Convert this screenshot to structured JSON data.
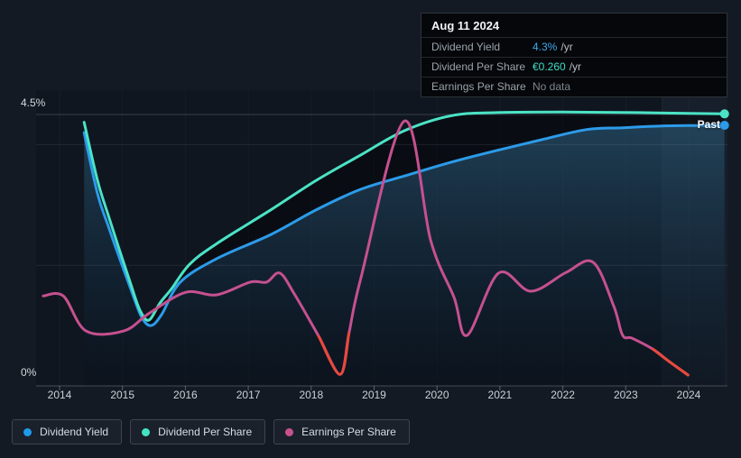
{
  "past_label": "Past",
  "axis": {
    "y_top_label": "4.5%",
    "y_bottom_label": "0%",
    "x_labels": [
      "2014",
      "2015",
      "2016",
      "2017",
      "2018",
      "2019",
      "2020",
      "2021",
      "2022",
      "2023",
      "2024"
    ]
  },
  "tooltip": {
    "date": "Aug 11 2024",
    "rows": [
      {
        "label": "Dividend Yield",
        "value": "4.3%",
        "suffix": "/yr",
        "value_color": "#3FA9EC"
      },
      {
        "label": "Dividend Per Share",
        "value": "€0.260",
        "suffix": "/yr",
        "value_color": "#41DCC8"
      },
      {
        "label": "Earnings Per Share",
        "value": "No data",
        "suffix": "",
        "value_color": "#7E8690"
      }
    ]
  },
  "legend": [
    {
      "label": "Dividend Yield",
      "color": "#1E9BE8"
    },
    {
      "label": "Dividend Per Share",
      "color": "#44E2C4"
    },
    {
      "label": "Earnings Per Share",
      "color": "#C8518E"
    }
  ],
  "chart_data": {
    "type": "line",
    "title": "Dividend history (Past)",
    "x_axis": {
      "unit": "year",
      "ticks": [
        2014,
        2015,
        2016,
        2017,
        2018,
        2019,
        2020,
        2021,
        2022,
        2023,
        2024
      ]
    },
    "y_axis": {
      "unit": "%",
      "min": 0,
      "max": 4.5,
      "gridlines": [
        0,
        2,
        4,
        4.5
      ]
    },
    "past_band_start_year": 2023.58,
    "end_date": "Aug 11 2024",
    "series": [
      {
        "name": "Dividend Yield",
        "color": "#2C9BE9",
        "area": "blue-gradient",
        "end_marker": true,
        "current": "4.3% /yr",
        "points": [
          [
            2014.39,
            4.2
          ],
          [
            2014.6,
            3.2
          ],
          [
            2014.77,
            2.66
          ],
          [
            2015.13,
            1.61
          ],
          [
            2015.3,
            1.15
          ],
          [
            2015.45,
            1.0
          ],
          [
            2015.62,
            1.18
          ],
          [
            2015.92,
            1.72
          ],
          [
            2016.5,
            2.11
          ],
          [
            2017.36,
            2.51
          ],
          [
            2018.1,
            2.93
          ],
          [
            2018.79,
            3.26
          ],
          [
            2019.48,
            3.48
          ],
          [
            2020.23,
            3.71
          ],
          [
            2020.94,
            3.9
          ],
          [
            2021.66,
            4.08
          ],
          [
            2022.38,
            4.25
          ],
          [
            2022.95,
            4.28
          ],
          [
            2023.58,
            4.31
          ],
          [
            2024.57,
            4.32
          ]
        ]
      },
      {
        "name": "Dividend Per Share",
        "color": "#4BE3C6",
        "area": "dark",
        "end_marker": true,
        "current": "€0.260 /yr",
        "note": "plotted scaled to yield axis",
        "points": [
          [
            2014.39,
            4.37
          ],
          [
            2014.6,
            3.42
          ],
          [
            2014.77,
            2.84
          ],
          [
            2015.13,
            1.69
          ],
          [
            2015.28,
            1.25
          ],
          [
            2015.42,
            1.09
          ],
          [
            2015.6,
            1.38
          ],
          [
            2015.78,
            1.61
          ],
          [
            2016.07,
            2.02
          ],
          [
            2016.5,
            2.36
          ],
          [
            2017.36,
            2.92
          ],
          [
            2018.07,
            3.4
          ],
          [
            2018.79,
            3.83
          ],
          [
            2019.48,
            4.23
          ],
          [
            2020.23,
            4.48
          ],
          [
            2020.94,
            4.53
          ],
          [
            2022.0,
            4.54
          ],
          [
            2023.2,
            4.53
          ],
          [
            2024.57,
            4.51
          ]
        ]
      },
      {
        "name": "Earnings Per Share",
        "color": "#C65090",
        "end_marker": false,
        "current": "No data",
        "red_color": "#E8493A",
        "red_ranges": [
          [
            2018.05,
            2018.62
          ],
          [
            2023.3,
            2024.05
          ]
        ],
        "points": [
          [
            2013.74,
            1.49
          ],
          [
            2014.06,
            1.49
          ],
          [
            2014.42,
            0.91
          ],
          [
            2015.02,
            0.91
          ],
          [
            2015.42,
            1.2
          ],
          [
            2016.0,
            1.55
          ],
          [
            2016.5,
            1.51
          ],
          [
            2017.03,
            1.72
          ],
          [
            2017.29,
            1.72
          ],
          [
            2017.5,
            1.87
          ],
          [
            2017.74,
            1.51
          ],
          [
            2018.12,
            0.82
          ],
          [
            2018.46,
            0.19
          ],
          [
            2018.6,
            0.87
          ],
          [
            2018.79,
            1.79
          ],
          [
            2019.48,
            4.39
          ],
          [
            2019.9,
            2.41
          ],
          [
            2020.27,
            1.47
          ],
          [
            2020.48,
            0.84
          ],
          [
            2020.98,
            1.87
          ],
          [
            2021.49,
            1.57
          ],
          [
            2022.05,
            1.88
          ],
          [
            2022.48,
            2.05
          ],
          [
            2022.81,
            1.32
          ],
          [
            2022.95,
            0.84
          ],
          [
            2023.1,
            0.79
          ],
          [
            2023.43,
            0.61
          ],
          [
            2023.67,
            0.42
          ],
          [
            2023.99,
            0.18
          ]
        ]
      }
    ]
  }
}
